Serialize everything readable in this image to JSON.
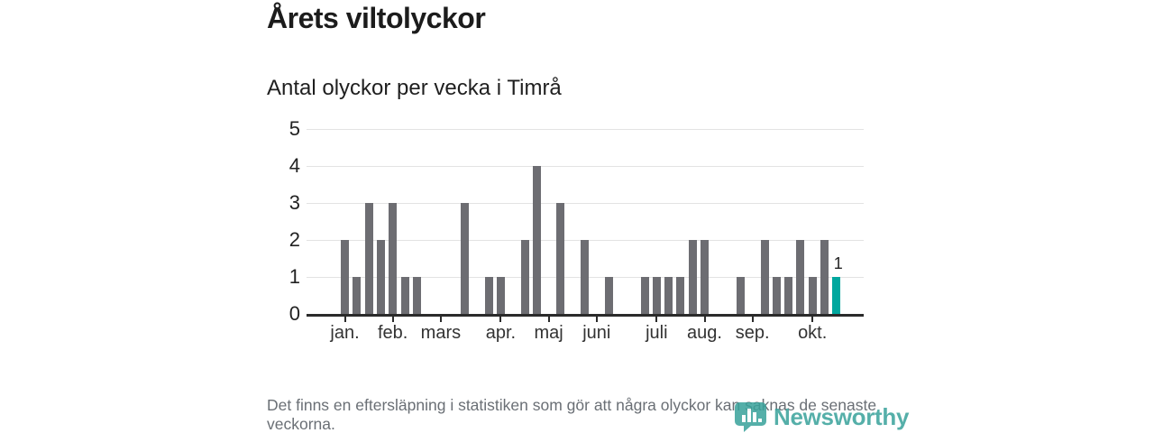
{
  "title": "Årets viltolyckor",
  "subtitle": "Antal olyckor per vecka i Timrå",
  "footer": {
    "note": "Det finns en eftersläpning i statistiken som gör att några olyckor kan saknas de senaste veckorna."
  },
  "branding": {
    "logo_text": "Newsworthy",
    "logo_icon": "bar-chart-bubble-icon",
    "brand_color": "#3aa29b"
  },
  "colors": {
    "bar": "#6d6d72",
    "highlight": "#00a79e",
    "axis": "#2b2b2b",
    "grid": "#e3e3e3"
  },
  "chart_data": {
    "type": "bar",
    "title": "Årets viltolyckor",
    "subtitle": "Antal olyckor per vecka i Timrå",
    "x_unit": "week of year",
    "values": [
      2,
      1,
      3,
      2,
      3,
      1,
      1,
      0,
      0,
      0,
      3,
      0,
      1,
      1,
      0,
      2,
      4,
      0,
      3,
      0,
      2,
      0,
      1,
      0,
      0,
      1,
      1,
      1,
      1,
      2,
      2,
      0,
      0,
      1,
      0,
      2,
      1,
      1,
      2,
      1,
      2,
      1
    ],
    "highlight": {
      "week": 42,
      "value": 1,
      "label": "1"
    },
    "ylim": [
      0,
      5
    ],
    "y_ticks": [
      0,
      1,
      2,
      3,
      4,
      5
    ],
    "x_ticks": [
      {
        "label": "jan.",
        "week": 1
      },
      {
        "label": "feb.",
        "week": 5
      },
      {
        "label": "mars",
        "week": 9
      },
      {
        "label": "apr.",
        "week": 14
      },
      {
        "label": "maj",
        "week": 18
      },
      {
        "label": "juni",
        "week": 22
      },
      {
        "label": "juli",
        "week": 27
      },
      {
        "label": "aug.",
        "week": 31
      },
      {
        "label": "sep.",
        "week": 35
      },
      {
        "label": "okt.",
        "week": 40
      }
    ],
    "grid": true
  }
}
